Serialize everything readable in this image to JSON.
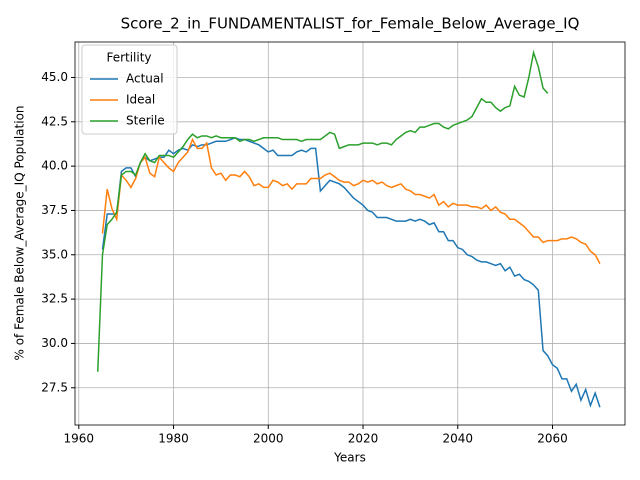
{
  "chart_data": {
    "type": "line",
    "title": "Score_2_in_FUNDAMENTALIST_for_Female_Below_Average_IQ",
    "xlabel": "Years",
    "ylabel": "% of Female Below_Average_IQ Population",
    "legend_title": "Fertility",
    "legend": "upper left",
    "grid": true,
    "x": [
      1964,
      1965,
      1966,
      1967,
      1968,
      1969,
      1970,
      1971,
      1972,
      1973,
      1974,
      1975,
      1976,
      1977,
      1978,
      1979,
      1980,
      1981,
      1982,
      1983,
      1984,
      1985,
      1986,
      1987,
      1988,
      1989,
      1990,
      1991,
      1992,
      1993,
      1994,
      1995,
      1996,
      1997,
      1998,
      1999,
      2000,
      2001,
      2002,
      2003,
      2004,
      2005,
      2006,
      2007,
      2008,
      2009,
      2010,
      2011,
      2012,
      2013,
      2014,
      2015,
      2016,
      2017,
      2018,
      2019,
      2020,
      2021,
      2022,
      2023,
      2024,
      2025,
      2026,
      2027,
      2028,
      2029,
      2030,
      2031,
      2032,
      2033,
      2034,
      2035,
      2036,
      2037,
      2038,
      2039,
      2040,
      2041,
      2042,
      2043,
      2044,
      2045,
      2046,
      2047,
      2048,
      2049,
      2050,
      2051,
      2052,
      2053,
      2054,
      2055,
      2056,
      2057,
      2058,
      2059,
      2060,
      2061,
      2062,
      2063,
      2064,
      2065,
      2066,
      2067,
      2068,
      2069,
      2070
    ],
    "series": [
      {
        "name": "Actual",
        "color": "#1f77b4",
        "values": [
          null,
          35.3,
          37.3,
          37.3,
          37.3,
          39.7,
          39.9,
          39.9,
          39.4,
          40.2,
          40.5,
          40.3,
          40.4,
          40.5,
          40.5,
          40.9,
          40.7,
          40.9,
          41.0,
          40.9,
          41.2,
          41.1,
          41.2,
          41.2,
          41.3,
          41.4,
          41.4,
          41.4,
          41.5,
          41.6,
          41.5,
          41.5,
          41.4,
          41.3,
          41.2,
          41.0,
          40.8,
          40.9,
          40.6,
          40.6,
          40.6,
          40.6,
          40.8,
          40.9,
          40.8,
          41.0,
          41.0,
          38.6,
          38.9,
          39.2,
          39.1,
          39.0,
          38.8,
          38.5,
          38.2,
          38.0,
          37.8,
          37.5,
          37.4,
          37.1,
          37.1,
          37.1,
          37.0,
          36.9,
          36.9,
          36.9,
          37.0,
          36.9,
          37.0,
          36.9,
          36.7,
          36.8,
          36.3,
          36.3,
          35.8,
          35.8,
          35.4,
          35.3,
          35.0,
          34.9,
          34.7,
          34.6,
          34.6,
          34.5,
          34.4,
          34.5,
          34.1,
          34.3,
          33.8,
          33.9,
          33.6,
          33.5,
          33.3,
          33.0,
          29.6,
          29.3,
          28.8,
          28.6,
          28.0,
          28.0,
          27.3,
          27.7,
          26.8,
          27.4,
          26.5,
          27.2,
          26.4
        ]
      },
      {
        "name": "Ideal",
        "color": "#ff7f0e",
        "values": [
          null,
          36.2,
          38.7,
          37.6,
          37.0,
          39.5,
          39.2,
          38.8,
          39.3,
          40.2,
          40.5,
          39.6,
          39.4,
          40.5,
          40.2,
          39.9,
          39.7,
          40.2,
          40.5,
          40.8,
          41.5,
          41.0,
          41.0,
          41.3,
          39.9,
          39.5,
          39.6,
          39.2,
          39.5,
          39.5,
          39.4,
          39.7,
          39.4,
          38.9,
          39.0,
          38.8,
          38.8,
          39.2,
          39.1,
          38.9,
          39.0,
          38.7,
          39.0,
          39.0,
          39.0,
          39.3,
          39.3,
          39.3,
          39.5,
          39.6,
          39.4,
          39.2,
          39.1,
          39.1,
          38.9,
          39.0,
          39.2,
          39.1,
          39.2,
          39.0,
          39.1,
          38.9,
          38.8,
          38.9,
          39.0,
          38.7,
          38.6,
          38.4,
          38.4,
          38.3,
          38.2,
          38.4,
          37.8,
          38.0,
          37.7,
          37.9,
          37.8,
          37.8,
          37.8,
          37.7,
          37.7,
          37.6,
          37.8,
          37.5,
          37.7,
          37.4,
          37.3,
          37.0,
          37.0,
          36.8,
          36.6,
          36.3,
          36.0,
          36.0,
          35.7,
          35.8,
          35.8,
          35.8,
          35.9,
          35.9,
          36.0,
          35.9,
          35.7,
          35.6,
          35.2,
          35.0,
          34.5
        ]
      },
      {
        "name": "Sterile",
        "color": "#2ca02c",
        "values": [
          28.4,
          35.0,
          36.7,
          37.0,
          37.4,
          39.5,
          39.7,
          39.7,
          39.5,
          40.2,
          40.7,
          40.3,
          40.2,
          40.6,
          40.6,
          40.6,
          40.5,
          40.8,
          41.1,
          41.5,
          41.8,
          41.6,
          41.7,
          41.7,
          41.6,
          41.7,
          41.6,
          41.6,
          41.6,
          41.6,
          41.4,
          41.5,
          41.5,
          41.4,
          41.5,
          41.6,
          41.6,
          41.6,
          41.6,
          41.5,
          41.5,
          41.5,
          41.5,
          41.4,
          41.5,
          41.5,
          41.5,
          41.5,
          41.7,
          41.9,
          41.8,
          41.0,
          41.1,
          41.2,
          41.2,
          41.2,
          41.3,
          41.3,
          41.3,
          41.2,
          41.3,
          41.3,
          41.2,
          41.5,
          41.7,
          41.9,
          42.0,
          41.9,
          42.2,
          42.2,
          42.3,
          42.4,
          42.4,
          42.2,
          42.1,
          42.3,
          42.4,
          42.5,
          42.6,
          42.8,
          43.3,
          43.8,
          43.6,
          43.6,
          43.3,
          43.1,
          43.3,
          43.4,
          44.5,
          44.0,
          43.9,
          45.0,
          46.4,
          45.6,
          44.4,
          44.1,
          null,
          null,
          null,
          null,
          null,
          null,
          null,
          null,
          null,
          null,
          null
        ]
      }
    ],
    "xlim": [
      1959.2,
      2075.3
    ],
    "xticks": [
      1960,
      1980,
      2000,
      2020,
      2040,
      2060
    ],
    "ylim": [
      25.4,
      47.0
    ],
    "yticks": [
      27.5,
      {
        "value": 30,
        "label": "30.0"
      },
      32.5,
      {
        "value": 35,
        "label": "35.0"
      },
      37.5,
      {
        "value": 40,
        "label": "40.0"
      },
      42.5,
      {
        "value": 45,
        "label": "45.0"
      }
    ]
  }
}
